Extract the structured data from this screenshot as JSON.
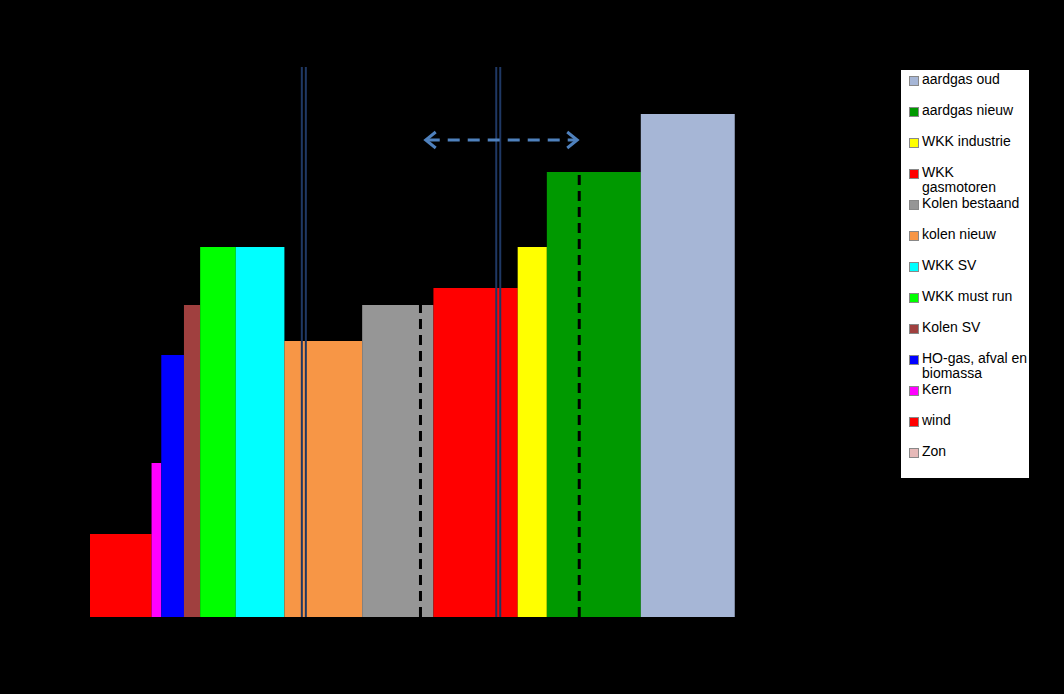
{
  "chart_data": {
    "type": "bar",
    "categories": [
      "Zon",
      "wind",
      "Kern",
      "HO-gas, afval en biomassa",
      "Kolen SV",
      "WKK must run",
      "WKK SV",
      "kolen nieuw",
      "Kolen bestaand",
      "WKK gasmotoren",
      "WKK industrie",
      "aardgas nieuw",
      "aardgas oud"
    ],
    "values": [
      0,
      8.3,
      15.4,
      26.2,
      31.2,
      37,
      37,
      27.6,
      31.2,
      32.9,
      37,
      44.5,
      50.3
    ],
    "widths": [
      0,
      1.9,
      0.3,
      0.7,
      0.5,
      1.1,
      1.5,
      2.4,
      2.2,
      2.6,
      0.9,
      2.9,
      2.9
    ],
    "colors": [
      "#e6b9b8",
      "#ff0000",
      "#ff00ff",
      "#0000ff",
      "#a0403f",
      "#00ff00",
      "#00ffff",
      "#f79646",
      "#969696",
      "#ff0000",
      "#ffff00",
      "#009900",
      "#a6b6d6"
    ],
    "xlim": [
      0,
      20
    ],
    "ylim": [
      0,
      55
    ],
    "tick_labels": false,
    "legend": "right",
    "reference_lines": [
      6.6,
      12.6
    ],
    "dashed_lines": [
      {
        "x": 10.2,
        "y": 31.2
      },
      {
        "x": 15.1,
        "y": 44.5
      }
    ],
    "arrow": {
      "from": 10.3,
      "to": 15.1,
      "y": 47.7
    }
  }
}
